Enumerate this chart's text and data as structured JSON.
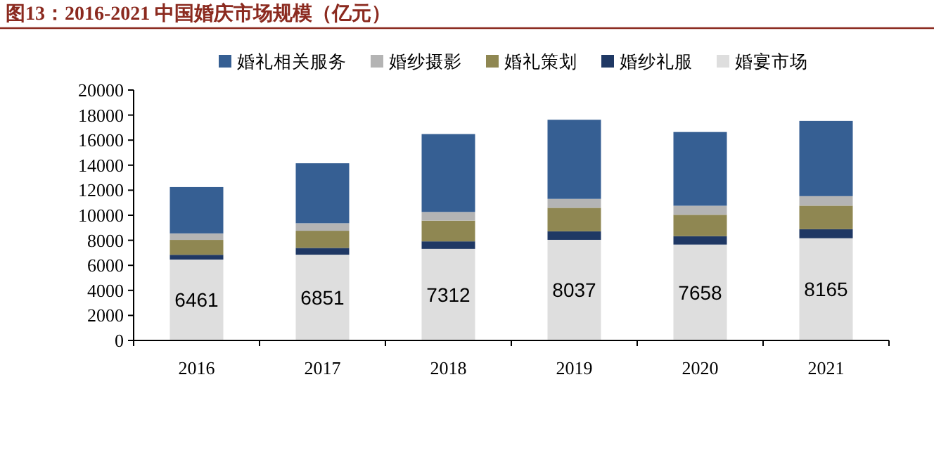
{
  "chart_data": {
    "type": "bar",
    "stacked": true,
    "title": "图13：2016-2021 中国婚庆市场规模（亿元）",
    "categories": [
      "2016",
      "2017",
      "2018",
      "2019",
      "2020",
      "2021"
    ],
    "ylim": [
      0,
      20000
    ],
    "yticks": [
      0,
      2000,
      4000,
      6000,
      8000,
      10000,
      12000,
      14000,
      16000,
      18000,
      20000
    ],
    "legend": "top",
    "grid": false,
    "series": [
      {
        "name": "婚宴市场",
        "color": "#dedede",
        "values": [
          6461,
          6851,
          7312,
          8037,
          7658,
          8165
        ],
        "value_labels": [
          "6461",
          "6851",
          "7312",
          "8037",
          "7658",
          "8165"
        ]
      },
      {
        "name": "婚纱礼服",
        "color": "#1f3864",
        "values": [
          380,
          540,
          600,
          680,
          670,
          720
        ]
      },
      {
        "name": "婚礼策划",
        "color": "#8f8752",
        "values": [
          1190,
          1370,
          1660,
          1880,
          1710,
          1880
        ]
      },
      {
        "name": "婚纱摄影",
        "color": "#b4b4b4",
        "values": [
          520,
          600,
          690,
          710,
          720,
          760
        ]
      },
      {
        "name": "婚礼相关服务",
        "color": "#365f93",
        "values": [
          3700,
          4790,
          6220,
          6320,
          5890,
          6010
        ]
      }
    ]
  }
}
